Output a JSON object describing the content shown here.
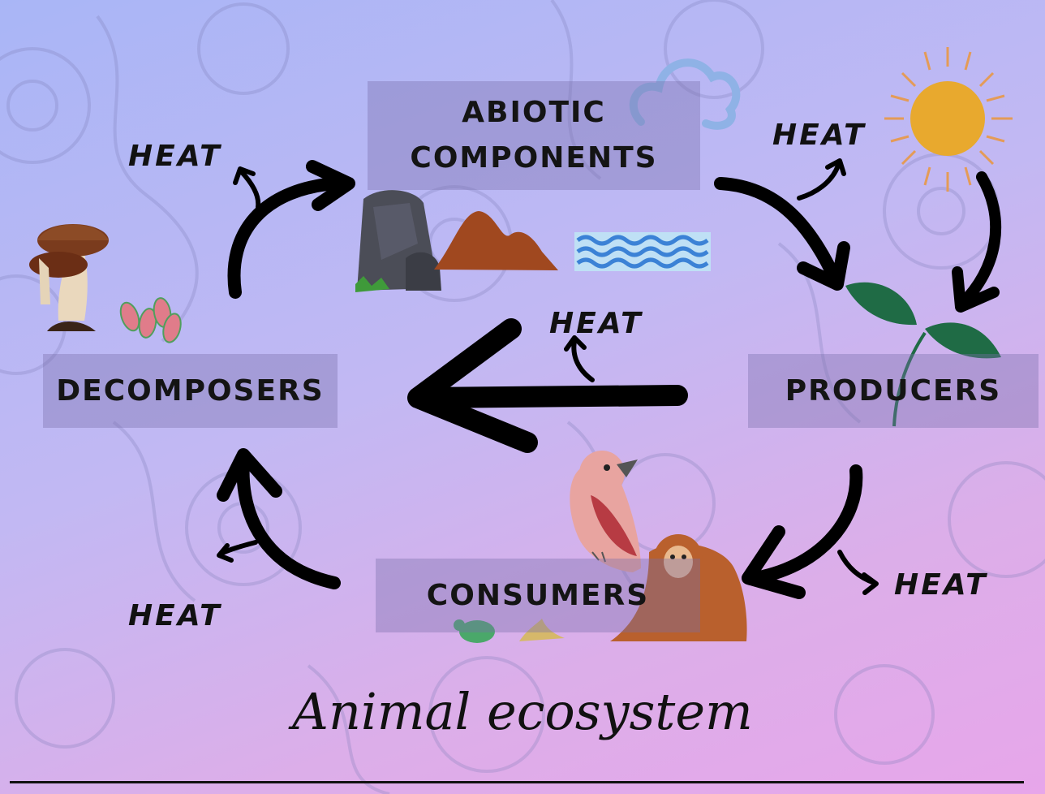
{
  "diagram": {
    "nodes": {
      "abiotic": "ABIOTIC\nCOMPONENTS",
      "decomposers": "DECOMPOSERS",
      "producers": "PRODUCERS",
      "consumers": "CONSUMERS"
    },
    "heat_labels": {
      "top_left": "HEAT",
      "top_right": "HEAT",
      "center": "HEAT",
      "bottom_left": "HEAT",
      "bottom_right": "HEAT"
    },
    "icons": [
      "mushroom-icon",
      "spores-icon",
      "cloud-icon",
      "sun-icon",
      "rock-icon",
      "soil-icon",
      "water-icon",
      "plant-icon",
      "bird-icon",
      "monkey-icon",
      "turtle-icon",
      "banana-peel-icon"
    ],
    "edges": [
      {
        "from": "decomposers",
        "to": "abiotic"
      },
      {
        "from": "abiotic",
        "to": "producers"
      },
      {
        "from": "sun",
        "to": "producers"
      },
      {
        "from": "producers",
        "to": "consumers"
      },
      {
        "from": "consumers",
        "to": "decomposers"
      },
      {
        "from": "producers",
        "to": "decomposers"
      }
    ]
  },
  "caption": "Animal ecosystem",
  "colors": {
    "box": "#786eaa",
    "arrow": "#000000",
    "sun": "#e8a92e",
    "leaf": "#1f6b45",
    "monkey": "#b9602d",
    "bird": "#e79a96"
  }
}
